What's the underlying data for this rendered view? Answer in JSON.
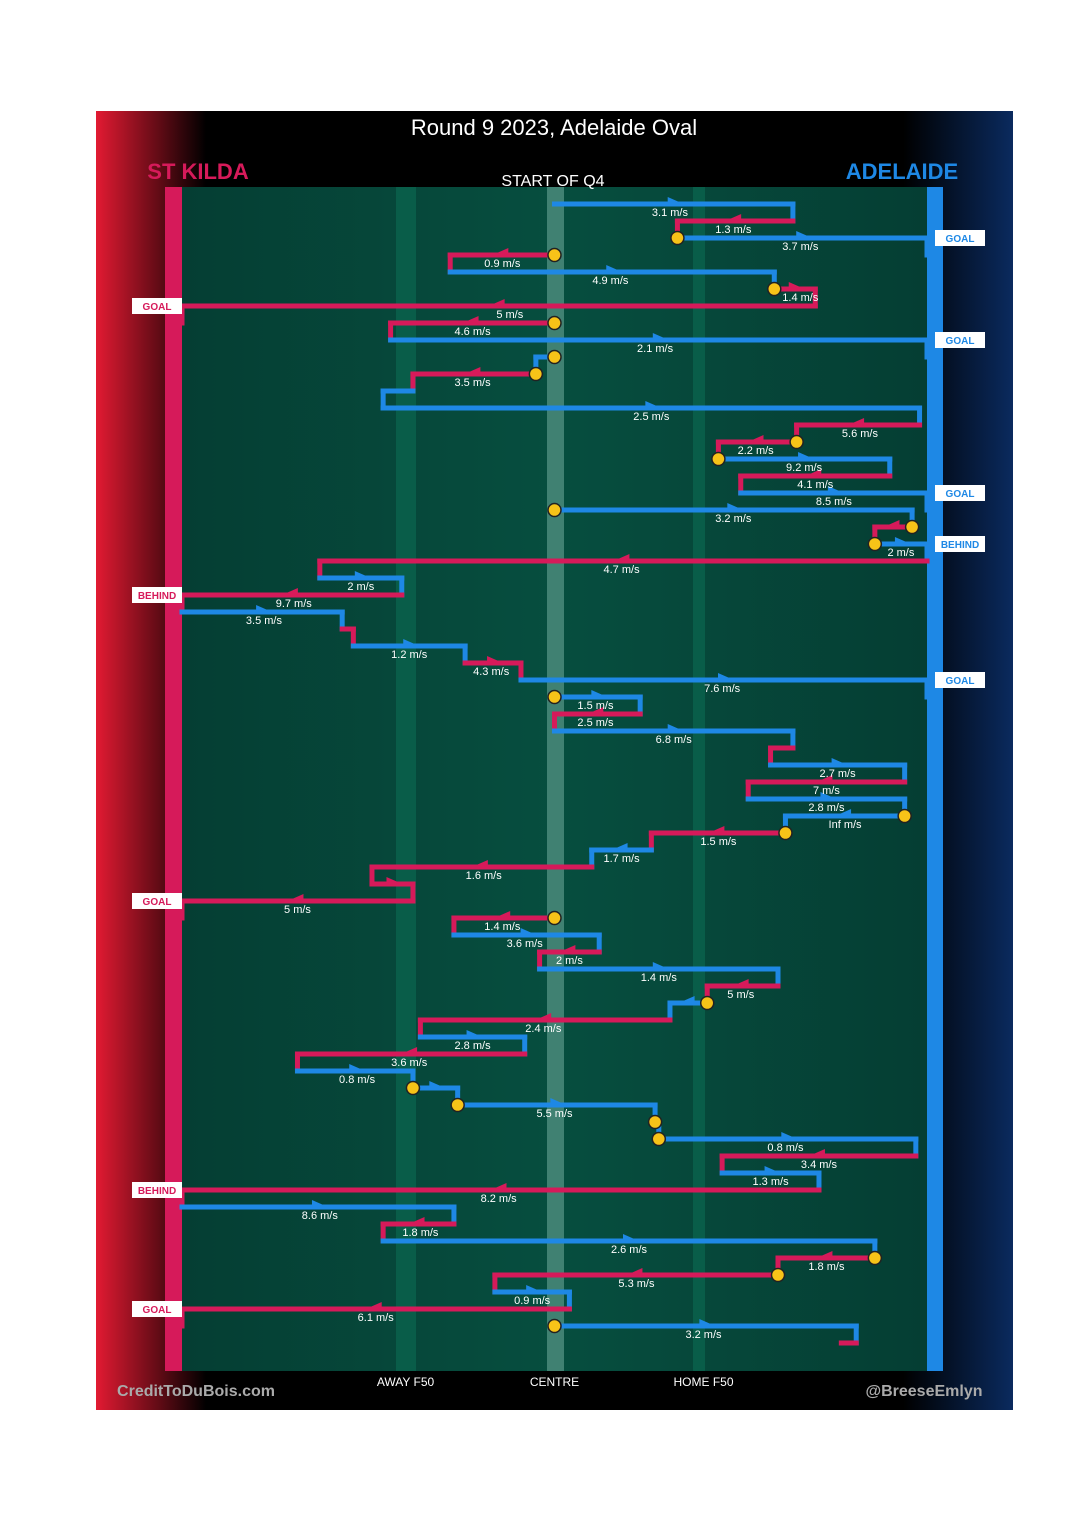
{
  "title": "Round 9 2023, Adelaide Oval",
  "subtitle": "START OF Q4",
  "teams": {
    "away": {
      "name": "ST KILDA",
      "color": "#d61a5a"
    },
    "home": {
      "name": "ADELAIDE",
      "color": "#1e88e5"
    }
  },
  "colors": {
    "field": "#054a3c",
    "ball_marker": "#f7c318",
    "background": "#000000"
  },
  "credits": {
    "left": "CreditToDuBois.com",
    "right": "@BreeseEmlyn"
  },
  "chart_data": {
    "type": "chain-flow",
    "x_axis": {
      "domain": [
        -1,
        1
      ],
      "note": "field position: -1 = St Kilda goal line, 0 = centre, 1 = Adelaide goal line",
      "ticks": [
        {
          "label": "AWAY F50",
          "value": -0.4
        },
        {
          "label": "CENTRE",
          "value": 0
        },
        {
          "label": "HOME F50",
          "value": 0.4
        }
      ]
    },
    "segments": [
      {
        "team": "home",
        "x": [
          0.0,
          0.64
        ],
        "label": "3.1 m/s",
        "label_x": 0.31
      },
      {
        "team": "away",
        "x": [
          0.64,
          0.33
        ],
        "label": "1.3 m/s",
        "label_x": 0.48
      },
      {
        "team": "home",
        "x": [
          0.33,
          1.0
        ],
        "label": "3.7 m/s",
        "label_x": 0.66,
        "start_ball": true,
        "outcome": "GOAL"
      },
      {
        "team": "away",
        "x": [
          0.0,
          -0.28
        ],
        "label": "0.9 m/s",
        "label_x": -0.14,
        "start_ball": true
      },
      {
        "team": "home",
        "x": [
          -0.28,
          0.59
        ],
        "label": "4.9 m/s",
        "label_x": 0.15
      },
      {
        "team": "away",
        "x": [
          0.59,
          0.7
        ],
        "label": "1.4 m/s",
        "label_x": 0.66,
        "start_ball": true
      },
      {
        "team": "away",
        "x": [
          0.7,
          -1.0
        ],
        "label": "5 m/s",
        "label_x": -0.12,
        "outcome": "GOAL"
      },
      {
        "team": "away",
        "x": [
          0.0,
          -0.44
        ],
        "label": "4.6 m/s",
        "label_x": -0.22,
        "start_ball": true
      },
      {
        "team": "home",
        "x": [
          -0.44,
          1.0
        ],
        "label": "2.1 m/s",
        "label_x": 0.27,
        "outcome": "GOAL"
      },
      {
        "team": "home",
        "x": [
          0.0,
          -0.05
        ],
        "start_ball": true
      },
      {
        "team": "away",
        "x": [
          -0.05,
          -0.38
        ],
        "label": "3.5 m/s",
        "label_x": -0.22,
        "start_ball": true
      },
      {
        "team": "home",
        "x": [
          -0.38,
          -0.46
        ]
      },
      {
        "team": "home",
        "x": [
          -0.46,
          0.98
        ],
        "label": "2.5 m/s",
        "label_x": 0.26
      },
      {
        "team": "away",
        "x": [
          0.98,
          0.65
        ],
        "label": "5.6 m/s",
        "label_x": 0.82
      },
      {
        "team": "away",
        "x": [
          0.65,
          0.44
        ],
        "label": "2.2 m/s",
        "label_x": 0.54,
        "start_ball": true
      },
      {
        "team": "home",
        "x": [
          0.44,
          0.9
        ],
        "label": "9.2 m/s",
        "label_x": 0.67,
        "start_ball": true
      },
      {
        "team": "away",
        "x": [
          0.9,
          0.5
        ],
        "label": "4.1 m/s",
        "label_x": 0.7
      },
      {
        "team": "home",
        "x": [
          0.5,
          1.0
        ],
        "label": "8.5 m/s",
        "label_x": 0.75,
        "outcome": "GOAL"
      },
      {
        "team": "home",
        "x": [
          0.0,
          0.96
        ],
        "label": "3.2 m/s",
        "label_x": 0.48,
        "start_ball": true
      },
      {
        "team": "away",
        "x": [
          0.96,
          0.86
        ],
        "start_ball": true
      },
      {
        "team": "home",
        "x": [
          0.86,
          1.0
        ],
        "label": "2 m/s",
        "label_x": 0.93,
        "start_ball": true,
        "outcome": "BEHIND"
      },
      {
        "team": "away",
        "x": [
          1.0,
          -0.63
        ],
        "label": "4.7 m/s",
        "label_x": 0.18
      },
      {
        "team": "home",
        "x": [
          -0.63,
          -0.41
        ],
        "label": "2 m/s",
        "label_x": -0.52
      },
      {
        "team": "away",
        "x": [
          -0.41,
          -1.0
        ],
        "label": "9.7 m/s",
        "label_x": -0.7,
        "outcome": "BEHIND"
      },
      {
        "team": "home",
        "x": [
          -1.0,
          -0.57
        ],
        "label": "3.5 m/s",
        "label_x": -0.78
      },
      {
        "team": "away",
        "x": [
          -0.57,
          -0.54
        ]
      },
      {
        "team": "home",
        "x": [
          -0.54,
          -0.24
        ],
        "label": "1.2 m/s",
        "label_x": -0.39
      },
      {
        "team": "away",
        "x": [
          -0.24,
          -0.09
        ],
        "label": "4.3 m/s",
        "label_x": -0.17
      },
      {
        "team": "home",
        "x": [
          -0.09,
          1.0
        ],
        "label": "7.6 m/s",
        "label_x": 0.45,
        "outcome": "GOAL"
      },
      {
        "team": "home",
        "x": [
          0.0,
          0.23
        ],
        "label": "1.5 m/s",
        "label_x": 0.11,
        "start_ball": true
      },
      {
        "team": "away",
        "x": [
          0.23,
          0.0
        ],
        "label": "2.5 m/s",
        "label_x": 0.11
      },
      {
        "team": "home",
        "x": [
          0.0,
          0.64
        ],
        "label": "6.8 m/s",
        "label_x": 0.32
      },
      {
        "team": "away",
        "x": [
          0.64,
          0.58
        ]
      },
      {
        "team": "home",
        "x": [
          0.58,
          0.94
        ],
        "label": "2.7 m/s",
        "label_x": 0.76
      },
      {
        "team": "away",
        "x": [
          0.94,
          0.52
        ],
        "label": "7 m/s",
        "label_x": 0.73
      },
      {
        "team": "home",
        "x": [
          0.52,
          0.94
        ],
        "label": "2.8 m/s",
        "label_x": 0.73
      },
      {
        "team": "home",
        "x": [
          0.94,
          0.62
        ],
        "label": "Inf m/s",
        "label_x": 0.78,
        "start_ball": true
      },
      {
        "team": "away",
        "x": [
          0.62,
          0.26
        ],
        "label": "1.5 m/s",
        "label_x": 0.44,
        "start_ball": true
      },
      {
        "team": "home",
        "x": [
          0.26,
          0.1
        ],
        "label": "1.7 m/s",
        "label_x": 0.18
      },
      {
        "team": "away",
        "x": [
          0.1,
          -0.49
        ],
        "label": "1.6 m/s",
        "label_x": -0.19
      },
      {
        "team": "away",
        "x": [
          -0.49,
          -0.38
        ]
      },
      {
        "team": "away",
        "x": [
          -0.38,
          -1.0
        ],
        "label": "5 m/s",
        "label_x": -0.69,
        "outcome": "GOAL"
      },
      {
        "team": "away",
        "x": [
          0.0,
          -0.27
        ],
        "label": "1.4 m/s",
        "label_x": -0.14,
        "start_ball": true
      },
      {
        "team": "home",
        "x": [
          -0.27,
          0.12
        ],
        "label": "3.6 m/s",
        "label_x": -0.08
      },
      {
        "team": "away",
        "x": [
          0.12,
          -0.04
        ],
        "label": "2 m/s",
        "label_x": 0.04
      },
      {
        "team": "home",
        "x": [
          -0.04,
          0.6
        ],
        "label": "1.4 m/s",
        "label_x": 0.28
      },
      {
        "team": "away",
        "x": [
          0.6,
          0.41
        ],
        "label": "5 m/s",
        "label_x": 0.5
      },
      {
        "team": "home",
        "x": [
          0.41,
          0.31
        ],
        "start_ball": true
      },
      {
        "team": "away",
        "x": [
          0.31,
          -0.36
        ],
        "label": "2.4 m/s",
        "label_x": -0.03
      },
      {
        "team": "home",
        "x": [
          -0.36,
          -0.08
        ],
        "label": "2.8 m/s",
        "label_x": -0.22
      },
      {
        "team": "away",
        "x": [
          -0.08,
          -0.69
        ],
        "label": "3.6 m/s",
        "label_x": -0.39
      },
      {
        "team": "home",
        "x": [
          -0.69,
          -0.38
        ],
        "label": "0.8 m/s",
        "label_x": -0.53
      },
      {
        "team": "home",
        "x": [
          -0.38,
          -0.26
        ],
        "start_ball": true
      },
      {
        "team": "home",
        "x": [
          -0.26,
          0.27
        ],
        "label": "5.5 m/s",
        "label_x": 0.0,
        "start_ball": true
      },
      {
        "team": "home",
        "x": [
          0.27,
          0.28
        ],
        "start_ball": true
      },
      {
        "team": "home",
        "x": [
          0.28,
          0.97
        ],
        "label": "0.8 m/s",
        "label_x": 0.62,
        "start_ball": true
      },
      {
        "team": "away",
        "x": [
          0.97,
          0.45
        ],
        "label": "3.4 m/s",
        "label_x": 0.71
      },
      {
        "team": "home",
        "x": [
          0.45,
          0.71
        ],
        "label": "1.3 m/s",
        "label_x": 0.58
      },
      {
        "team": "away",
        "x": [
          0.71,
          -1.0
        ],
        "label": "8.2 m/s",
        "label_x": -0.15,
        "outcome": "BEHIND"
      },
      {
        "team": "home",
        "x": [
          -1.0,
          -0.27
        ],
        "label": "8.6 m/s",
        "label_x": -0.63
      },
      {
        "team": "away",
        "x": [
          -0.27,
          -0.46
        ],
        "label": "1.8 m/s",
        "label_x": -0.36
      },
      {
        "team": "home",
        "x": [
          -0.46,
          0.86
        ],
        "label": "2.6 m/s",
        "label_x": 0.2
      },
      {
        "team": "away",
        "x": [
          0.86,
          0.6
        ],
        "label": "1.8 m/s",
        "label_x": 0.73,
        "start_ball": true
      },
      {
        "team": "away",
        "x": [
          0.6,
          -0.16
        ],
        "label": "5.3 m/s",
        "label_x": 0.22,
        "start_ball": true
      },
      {
        "team": "home",
        "x": [
          -0.16,
          0.04
        ],
        "label": "0.9 m/s",
        "label_x": -0.06
      },
      {
        "team": "away",
        "x": [
          0.04,
          -1.0
        ],
        "label": "6.1 m/s",
        "label_x": -0.48,
        "outcome": "GOAL"
      },
      {
        "team": "home",
        "x": [
          0.0,
          0.81
        ],
        "label": "3.2 m/s",
        "label_x": 0.4,
        "start_ball": true
      },
      {
        "team": "away",
        "x": [
          0.81,
          0.77
        ]
      }
    ]
  }
}
